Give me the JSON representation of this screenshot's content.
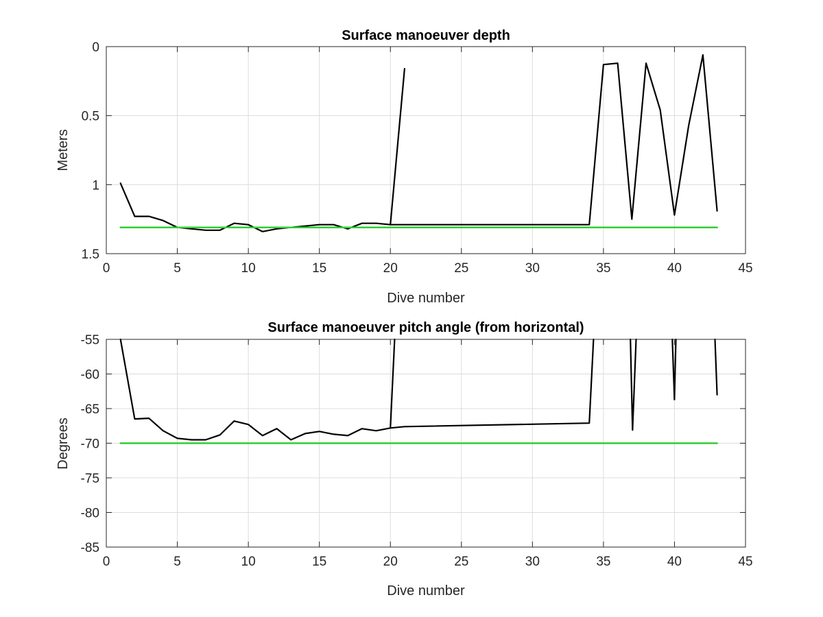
{
  "chart_data": [
    {
      "type": "line",
      "title": "Surface manoeuver depth",
      "xlabel": "Dive number",
      "ylabel": "Meters",
      "xlim": [
        0,
        45
      ],
      "ylim": [
        0,
        1.5
      ],
      "y_reversed": true,
      "grid": true,
      "xticks": [
        "0",
        "5",
        "10",
        "15",
        "20",
        "25",
        "30",
        "35",
        "40",
        "45"
      ],
      "yticks": [
        "0",
        "0.5",
        "1",
        "1.5"
      ],
      "series": [
        {
          "color": "#000000",
          "points": [
            [
              1,
              0.99
            ],
            [
              2,
              1.23
            ],
            [
              3,
              1.23
            ],
            [
              4,
              1.26
            ],
            [
              5,
              1.31
            ],
            [
              6,
              1.32
            ],
            [
              7,
              1.33
            ],
            [
              8,
              1.33
            ],
            [
              9,
              1.28
            ],
            [
              10,
              1.29
            ],
            [
              11,
              1.34
            ],
            [
              12,
              1.32
            ],
            [
              13,
              1.31
            ],
            [
              14,
              1.3
            ],
            [
              15,
              1.29
            ],
            [
              16,
              1.29
            ],
            [
              17,
              1.32
            ],
            [
              18,
              1.28
            ],
            [
              19,
              1.28
            ],
            [
              20,
              1.29
            ],
            [
              21,
              0.16
            ]
          ]
        },
        {
          "color": "#000000",
          "points": [
            [
              20,
              1.29
            ],
            [
              34,
              1.29
            ],
            [
              35,
              0.13
            ],
            [
              36,
              0.12
            ],
            [
              37,
              1.25
            ],
            [
              38,
              0.12
            ],
            [
              39,
              0.46
            ],
            [
              40,
              1.22
            ],
            [
              41,
              0.57
            ],
            [
              42,
              0.06
            ],
            [
              43,
              1.19
            ]
          ]
        },
        {
          "color": "#33cc33",
          "points": [
            [
              1,
              1.31
            ],
            [
              43,
              1.31
            ]
          ]
        }
      ]
    },
    {
      "type": "line",
      "title": "Surface manoeuver pitch angle (from horizontal)",
      "xlabel": "Dive number",
      "ylabel": "Degrees",
      "xlim": [
        0,
        45
      ],
      "ylim": [
        -85,
        -55
      ],
      "grid": true,
      "xticks": [
        "0",
        "5",
        "10",
        "15",
        "20",
        "25",
        "30",
        "35",
        "40",
        "45"
      ],
      "yticks": [
        "-55",
        "-60",
        "-65",
        "-70",
        "-75",
        "-80",
        "-85"
      ],
      "series": [
        {
          "color": "#000000",
          "points": [
            [
              1,
              -55
            ],
            [
              2,
              -66.5
            ],
            [
              3,
              -66.4
            ],
            [
              4,
              -68.2
            ],
            [
              5,
              -69.3
            ],
            [
              6,
              -69.5
            ],
            [
              7,
              -69.5
            ],
            [
              8,
              -68.8
            ],
            [
              9,
              -66.8
            ],
            [
              10,
              -67.3
            ],
            [
              11,
              -68.9
            ],
            [
              12,
              -67.9
            ],
            [
              13,
              -69.5
            ],
            [
              14,
              -68.6
            ],
            [
              15,
              -68.3
            ],
            [
              16,
              -68.7
            ],
            [
              17,
              -68.9
            ],
            [
              18,
              -67.9
            ],
            [
              19,
              -68.2
            ],
            [
              20,
              -67.8
            ],
            [
              20.3,
              -55
            ]
          ]
        },
        {
          "color": "#000000",
          "points": [
            [
              20,
              -67.8
            ],
            [
              21,
              -67.6
            ],
            [
              34,
              -67.1
            ],
            [
              34.3,
              -55
            ]
          ]
        },
        {
          "color": "#000000",
          "points": [
            [
              36.9,
              -55
            ],
            [
              37.05,
              -68.1
            ],
            [
              37.3,
              -55
            ]
          ]
        },
        {
          "color": "#000000",
          "points": [
            [
              39.85,
              -55
            ],
            [
              40,
              -63.7
            ],
            [
              40.1,
              -55
            ]
          ]
        },
        {
          "color": "#000000",
          "points": [
            [
              42.85,
              -55
            ],
            [
              43,
              -63
            ]
          ]
        },
        {
          "color": "#33cc33",
          "points": [
            [
              1,
              -70
            ],
            [
              43,
              -70
            ]
          ]
        }
      ]
    }
  ]
}
